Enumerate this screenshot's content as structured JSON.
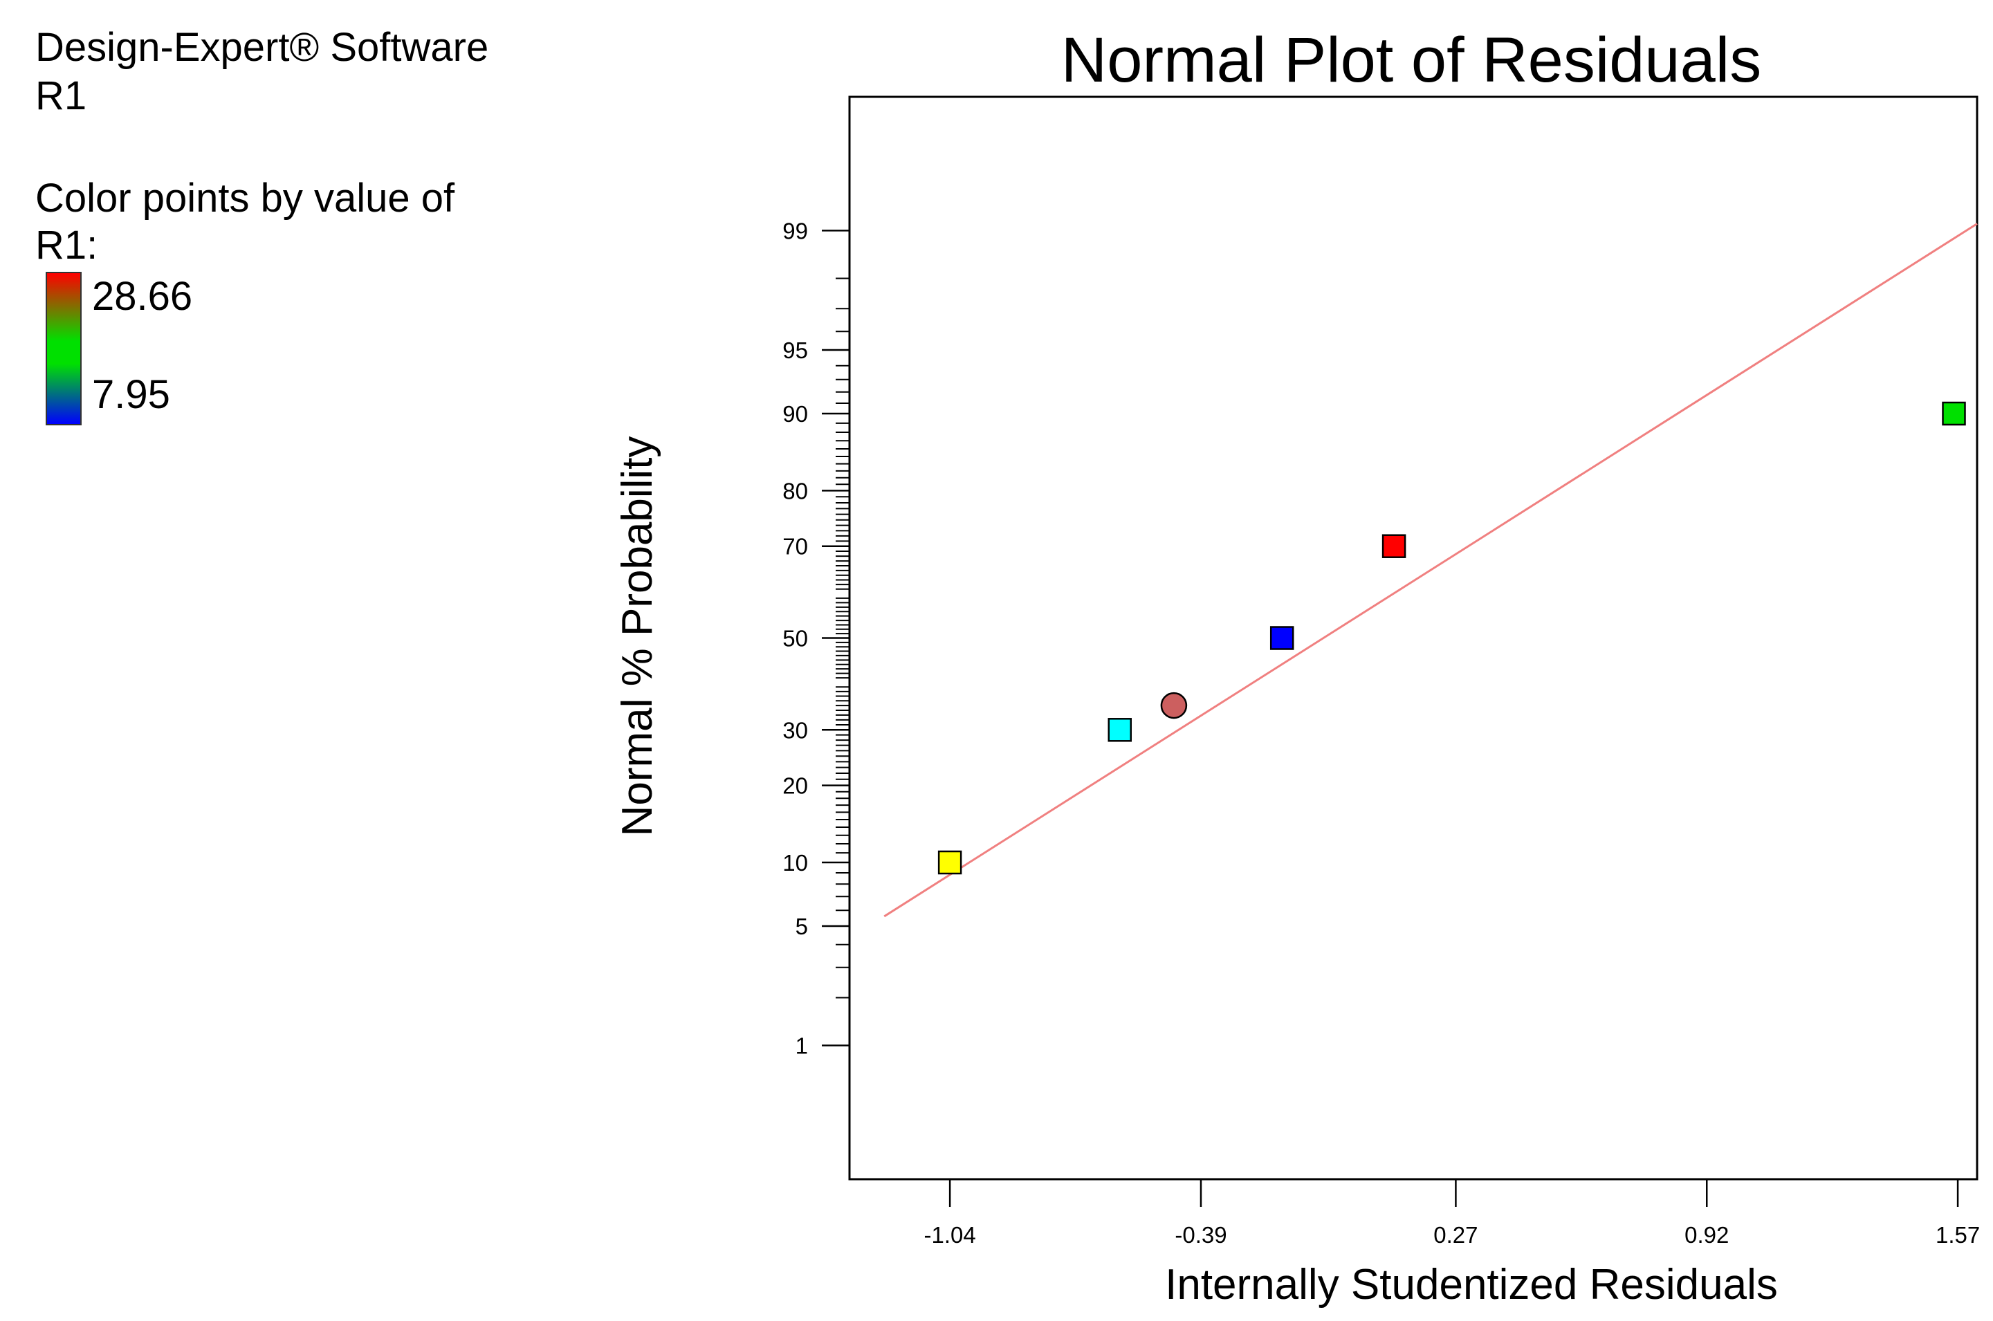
{
  "sidebar": {
    "software": "Design-Expert® Software",
    "response": "R1",
    "color_caption": "Color points by value of",
    "color_response": "R1:",
    "color_max": "28.66",
    "color_min": "7.95",
    "color_max_hex": "#ff0000",
    "color_min_hex": "#0000ff"
  },
  "chart_data": {
    "type": "scatter",
    "title": "Normal Plot of Residuals",
    "xlabel": "Internally Studentized Residuals",
    "ylabel": "Normal % Probability",
    "xlim": [
      -1.3,
      1.62
    ],
    "ylim": [
      0.1,
      99.9
    ],
    "x_ticks": [
      -1.04,
      -0.39,
      0.27,
      0.92,
      1.57
    ],
    "x_tick_labels": [
      "-1.04",
      "-0.39",
      "0.27",
      "0.92",
      "1.57"
    ],
    "y_ticks": [
      1,
      5,
      10,
      20,
      30,
      50,
      70,
      80,
      90,
      95,
      99
    ],
    "y_tick_labels": [
      "1",
      "5",
      "10",
      "20",
      "30",
      "50",
      "70",
      "80",
      "90",
      "95",
      "99"
    ],
    "y_scale": "normal-probability",
    "fit_line": {
      "color": "#f08080",
      "points": [
        [
          -1.21,
          5.6
        ],
        [
          1.62,
          99.1
        ]
      ]
    },
    "points": [
      {
        "x": -1.04,
        "y": 10,
        "marker": "square",
        "color": "#ffff00"
      },
      {
        "x": -0.6,
        "y": 30,
        "marker": "square",
        "color": "#00ffff"
      },
      {
        "x": -0.46,
        "y": 35,
        "marker": "circle",
        "color": "#cc5f5f"
      },
      {
        "x": -0.18,
        "y": 50,
        "marker": "square",
        "color": "#0000ff"
      },
      {
        "x": 0.11,
        "y": 70,
        "marker": "square",
        "color": "#ff0000"
      },
      {
        "x": 1.56,
        "y": 90,
        "marker": "square",
        "color": "#00e000"
      }
    ]
  }
}
